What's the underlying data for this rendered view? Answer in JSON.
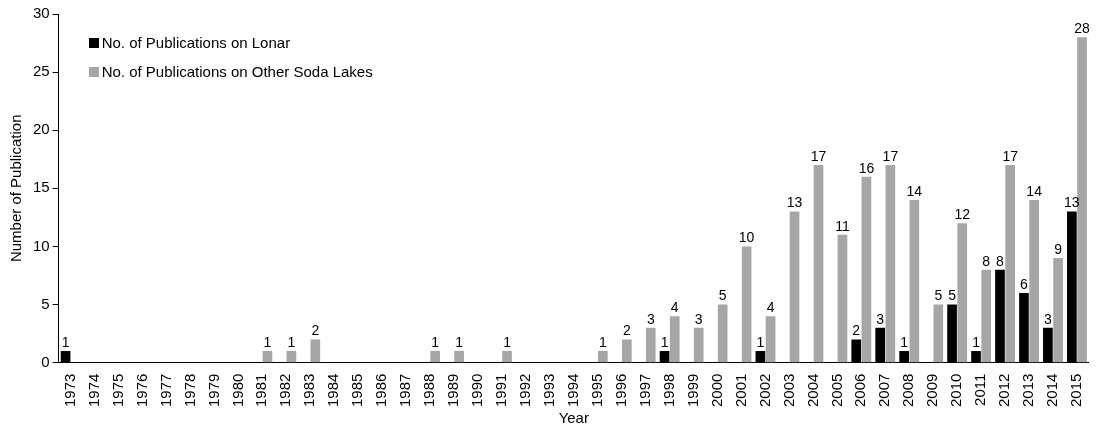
{
  "chart_data": {
    "type": "bar",
    "xlabel": "Year",
    "ylabel": "Number of Publication",
    "categories": [
      "1973",
      "1974",
      "1975",
      "1976",
      "1977",
      "1978",
      "1979",
      "1980",
      "1981",
      "1982",
      "1983",
      "1984",
      "1985",
      "1986",
      "1987",
      "1988",
      "1989",
      "1990",
      "1991",
      "1992",
      "1993",
      "1994",
      "1995",
      "1996",
      "1997",
      "1998",
      "1999",
      "2000",
      "2001",
      "2002",
      "2003",
      "2004",
      "2005",
      "2006",
      "2007",
      "2008",
      "2009",
      "2010",
      "2011",
      "2012",
      "2013",
      "2014",
      "2015"
    ],
    "series": [
      {
        "name": "No. of Publications on Lonar",
        "color": "#000000",
        "values": [
          1,
          0,
          0,
          0,
          0,
          0,
          0,
          0,
          0,
          0,
          0,
          0,
          0,
          0,
          0,
          0,
          0,
          0,
          0,
          0,
          0,
          0,
          0,
          0,
          0,
          1,
          0,
          0,
          0,
          1,
          0,
          0,
          0,
          2,
          3,
          1,
          0,
          5,
          1,
          8,
          6,
          3,
          13
        ],
        "value_labels": [
          "1",
          null,
          null,
          null,
          null,
          null,
          null,
          null,
          null,
          null,
          null,
          null,
          null,
          null,
          null,
          null,
          null,
          null,
          null,
          null,
          null,
          null,
          null,
          null,
          null,
          "1",
          null,
          null,
          null,
          "1",
          null,
          null,
          null,
          "2",
          "3",
          "1",
          null,
          "5",
          "1",
          "8",
          "6",
          "3",
          "13"
        ]
      },
      {
        "name": "No. of Publications on Other Soda Lakes",
        "color": "#a6a6a6",
        "values": [
          0,
          0,
          0,
          0,
          0,
          0,
          0,
          0,
          1,
          1,
          2,
          0,
          0,
          0,
          0,
          1,
          1,
          0,
          1,
          0,
          0,
          0,
          1,
          2,
          3,
          4,
          3,
          5,
          10,
          4,
          13,
          17,
          11,
          16,
          17,
          14,
          5,
          12,
          8,
          17,
          14,
          9,
          28
        ],
        "value_labels": [
          null,
          null,
          null,
          null,
          null,
          null,
          null,
          null,
          "1",
          "1",
          "2",
          null,
          null,
          null,
          null,
          "1",
          "1",
          null,
          "1",
          null,
          null,
          null,
          "1",
          "2",
          "3",
          "4",
          "3",
          "5",
          "10",
          "4",
          "13",
          "17",
          "11",
          "16",
          "17",
          "14",
          "5",
          "12",
          "8",
          "17",
          "14",
          "9",
          "28"
        ]
      }
    ],
    "ylim": [
      0,
      30
    ],
    "yticks": [
      0,
      5,
      10,
      15,
      20,
      25,
      30
    ],
    "grid": false,
    "legend": "top left"
  }
}
